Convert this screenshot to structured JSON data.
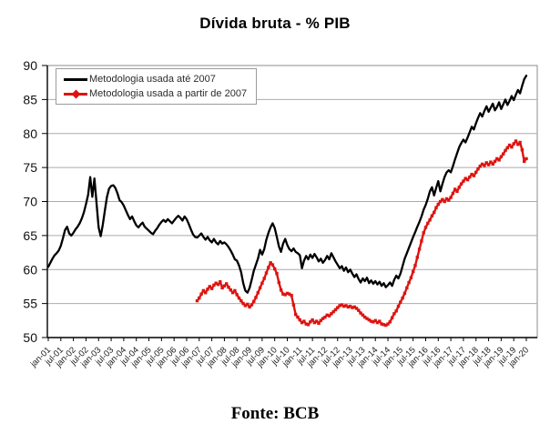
{
  "chart_data": {
    "type": "line",
    "title": "Dívida bruta - % PIB",
    "source": "Fonte: BCB",
    "ylim": [
      50,
      90
    ],
    "ytick_step": 5,
    "grid": "horizontal",
    "legend_position": "top-left-inside",
    "x_tick_labels": [
      "jan-01",
      "jul-01",
      "jan-02",
      "jul-02",
      "jan-03",
      "jul-03",
      "jan-04",
      "jul-04",
      "jan-05",
      "jul-05",
      "jan-06",
      "jul-06",
      "jan-07",
      "jul-07",
      "jan-08",
      "jul-08",
      "jan-09",
      "jul-09",
      "jan-10",
      "jul-10",
      "jan-11",
      "jul-11",
      "jan-12",
      "jul-12",
      "jan-13",
      "jul-13",
      "jan-14",
      "jul-14",
      "jan-15",
      "jul-15",
      "jan-16",
      "jul-16",
      "jan-17",
      "jul-17",
      "jan-18",
      "jul-18",
      "jan-19",
      "jul-19",
      "jan-20"
    ],
    "months_between_ticks": 6,
    "series": [
      {
        "name": "Metodologia usada até 2007",
        "color": "#000000",
        "marker": "none",
        "start_month": 0,
        "values": [
          60.4,
          61.0,
          61.6,
          62.1,
          62.4,
          62.8,
          63.5,
          64.6,
          65.8,
          66.3,
          65.3,
          65.0,
          65.4,
          65.9,
          66.3,
          66.8,
          67.5,
          68.4,
          69.6,
          71.0,
          73.6,
          70.7,
          73.4,
          69.8,
          66.2,
          64.9,
          66.6,
          68.7,
          70.7,
          71.9,
          72.3,
          72.4,
          72.0,
          71.2,
          70.2,
          69.9,
          69.4,
          68.7,
          68.0,
          67.4,
          67.8,
          67.1,
          66.5,
          66.2,
          66.6,
          66.9,
          66.3,
          66.0,
          65.7,
          65.4,
          65.2,
          65.7,
          66.1,
          66.6,
          67.0,
          67.3,
          67.0,
          67.4,
          67.1,
          66.8,
          67.2,
          67.6,
          67.9,
          67.6,
          67.2,
          67.8,
          67.4,
          66.7,
          65.9,
          65.2,
          64.8,
          64.7,
          65.0,
          65.3,
          64.8,
          64.4,
          64.8,
          64.3,
          64.0,
          64.5,
          64.0,
          63.7,
          64.2,
          63.8,
          64.0,
          63.7,
          63.3,
          62.8,
          62.2,
          61.5,
          61.3,
          60.6,
          59.6,
          58.0,
          56.9,
          56.6,
          57.3,
          58.5,
          59.8,
          60.7,
          61.6,
          62.9,
          62.2,
          63.0,
          64.4,
          65.4,
          66.2,
          66.8,
          66.1,
          64.8,
          63.4,
          62.6,
          63.8,
          64.5,
          63.6,
          63.0,
          62.7,
          63.1,
          62.6,
          62.4,
          62.1,
          60.2,
          61.3,
          62.0,
          61.5,
          62.2,
          61.7,
          62.3,
          61.8,
          61.2,
          61.6,
          61.0,
          61.4,
          62.0,
          61.5,
          62.4,
          61.8,
          61.2,
          60.7,
          60.2,
          60.5,
          59.8,
          60.3,
          59.6,
          60.0,
          59.4,
          58.9,
          59.3,
          58.6,
          58.1,
          58.7,
          58.3,
          58.8,
          58.0,
          58.4,
          57.9,
          58.3,
          57.8,
          58.2,
          57.6,
          58.0,
          57.4,
          57.7,
          58.1,
          57.6,
          58.5,
          59.1,
          58.7,
          59.4,
          60.5,
          61.6,
          62.4,
          63.2,
          64.0,
          64.8,
          65.5,
          66.3,
          67.0,
          67.8,
          68.8,
          69.5,
          70.4,
          71.5,
          72.1,
          70.9,
          72.0,
          73.0,
          71.5,
          72.6,
          73.6,
          74.3,
          74.6,
          74.3,
          75.2,
          76.2,
          77.1,
          78.0,
          78.6,
          79.1,
          78.7,
          79.4,
          80.2,
          81.0,
          80.6,
          81.5,
          82.3,
          83.0,
          82.5,
          83.3,
          84.0,
          83.2,
          83.8,
          84.4,
          83.4,
          83.9,
          84.6,
          83.6,
          84.3,
          85.0,
          84.2,
          84.8,
          85.5,
          84.9,
          85.7,
          86.4,
          85.9,
          87.0,
          88.0,
          88.5
        ]
      },
      {
        "name": "Metodologia usada a partir de 2007",
        "color": "#dd1410",
        "marker": "square",
        "start_month": 71,
        "values": [
          55.4,
          55.8,
          56.4,
          56.9,
          56.6,
          57.1,
          57.5,
          57.2,
          57.7,
          58.0,
          57.8,
          58.2,
          57.3,
          57.6,
          57.9,
          57.4,
          57.0,
          56.6,
          56.9,
          56.3,
          55.8,
          55.4,
          55.0,
          54.7,
          54.9,
          54.5,
          54.8,
          55.3,
          55.9,
          56.6,
          57.3,
          58.0,
          58.7,
          59.5,
          60.3,
          61.0,
          60.7,
          60.1,
          59.4,
          58.1,
          57.0,
          56.4,
          56.3,
          56.5,
          56.4,
          56.2,
          54.8,
          53.4,
          53.0,
          52.6,
          52.2,
          52.4,
          52.0,
          51.9,
          52.3,
          52.6,
          52.2,
          52.4,
          52.1,
          52.5,
          52.8,
          53.0,
          53.3,
          53.2,
          53.5,
          53.8,
          54.1,
          54.4,
          54.7,
          54.8,
          54.6,
          54.7,
          54.5,
          54.6,
          54.4,
          54.5,
          54.3,
          54.0,
          53.6,
          53.3,
          53.0,
          52.8,
          52.6,
          52.4,
          52.3,
          52.5,
          52.2,
          52.4,
          52.0,
          51.9,
          51.8,
          52.0,
          52.3,
          52.9,
          53.5,
          53.9,
          54.6,
          55.2,
          55.8,
          56.5,
          57.3,
          58.1,
          58.8,
          59.7,
          60.6,
          61.8,
          63.0,
          64.2,
          65.4,
          66.2,
          66.8,
          67.3,
          67.9,
          68.4,
          69.1,
          69.6,
          70.0,
          70.3,
          70.0,
          70.4,
          70.2,
          70.6,
          71.2,
          71.8,
          71.5,
          72.1,
          72.6,
          73.0,
          73.4,
          73.2,
          73.6,
          74.0,
          73.8,
          74.3,
          74.8,
          75.2,
          75.5,
          75.3,
          75.7,
          75.4,
          75.8,
          75.5,
          75.9,
          76.3,
          76.1,
          76.6,
          77.0,
          77.5,
          77.9,
          78.3,
          78.0,
          78.5,
          78.9,
          78.4,
          78.7,
          77.6,
          75.9,
          76.3
        ]
      }
    ]
  }
}
